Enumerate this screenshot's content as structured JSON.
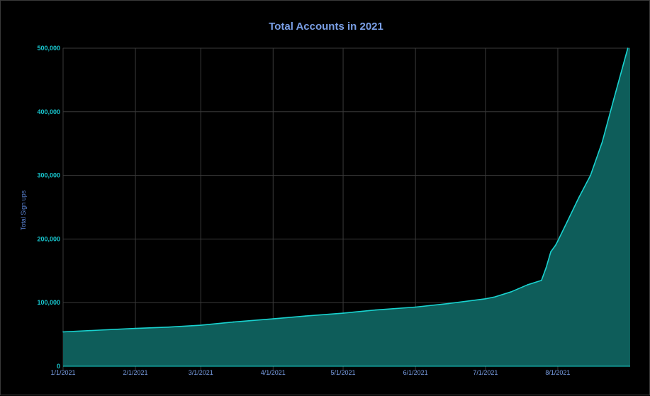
{
  "chart_data": {
    "type": "area",
    "title": "Total Accounts in 2021",
    "xlabel": "",
    "ylabel": "Total Sign ups",
    "ylim": [
      0,
      500000
    ],
    "xlim": [
      "2021-01-01",
      "2021-09-01"
    ],
    "grid": true,
    "legend": "none",
    "y_ticks": [
      {
        "value": 0,
        "label": "0"
      },
      {
        "value": 100000,
        "label": "100,000"
      },
      {
        "value": 200000,
        "label": "200,000"
      },
      {
        "value": 300000,
        "label": "300,000"
      },
      {
        "value": 400000,
        "label": "400,000"
      },
      {
        "value": 500000,
        "label": "500,000"
      }
    ],
    "x_ticks": [
      {
        "date": "2021-01-01",
        "label": "1/1/2021"
      },
      {
        "date": "2021-02-01",
        "label": "2/1/2021"
      },
      {
        "date": "2021-03-01",
        "label": "3/1/2021"
      },
      {
        "date": "2021-04-01",
        "label": "4/1/2021"
      },
      {
        "date": "2021-05-01",
        "label": "5/1/2021"
      },
      {
        "date": "2021-06-01",
        "label": "6/1/2021"
      },
      {
        "date": "2021-07-01",
        "label": "7/1/2021"
      },
      {
        "date": "2021-08-01",
        "label": "8/1/2021"
      }
    ],
    "series": [
      {
        "x": [
          "2021-01-01",
          "2021-01-15",
          "2021-02-01",
          "2021-02-15",
          "2021-03-01",
          "2021-03-15",
          "2021-04-01",
          "2021-04-15",
          "2021-05-01",
          "2021-05-15",
          "2021-06-01",
          "2021-06-15",
          "2021-07-01",
          "2021-07-05",
          "2021-07-12",
          "2021-07-19",
          "2021-07-25",
          "2021-07-27",
          "2021-07-29",
          "2021-07-31",
          "2021-08-01",
          "2021-08-05",
          "2021-08-10",
          "2021-08-15",
          "2021-08-20",
          "2021-08-25",
          "2021-08-31"
        ],
        "y": [
          54000,
          56500,
          59500,
          61500,
          64500,
          69500,
          74500,
          79000,
          83500,
          88500,
          93000,
          98500,
          106000,
          109000,
          117000,
          128000,
          135000,
          155000,
          180000,
          190000,
          197000,
          227000,
          265000,
          300000,
          352000,
          420000,
          503000
        ]
      }
    ]
  },
  "colors": {
    "background": "#000000",
    "line": "#19d3d0",
    "fill": "#0e5d5a",
    "grid": "#3a3a3a",
    "axis_text": "#18c8d0",
    "x_tick_text": "#7a9fe6",
    "title": "#7a9fe6",
    "ylabel": "#5c85d6"
  }
}
